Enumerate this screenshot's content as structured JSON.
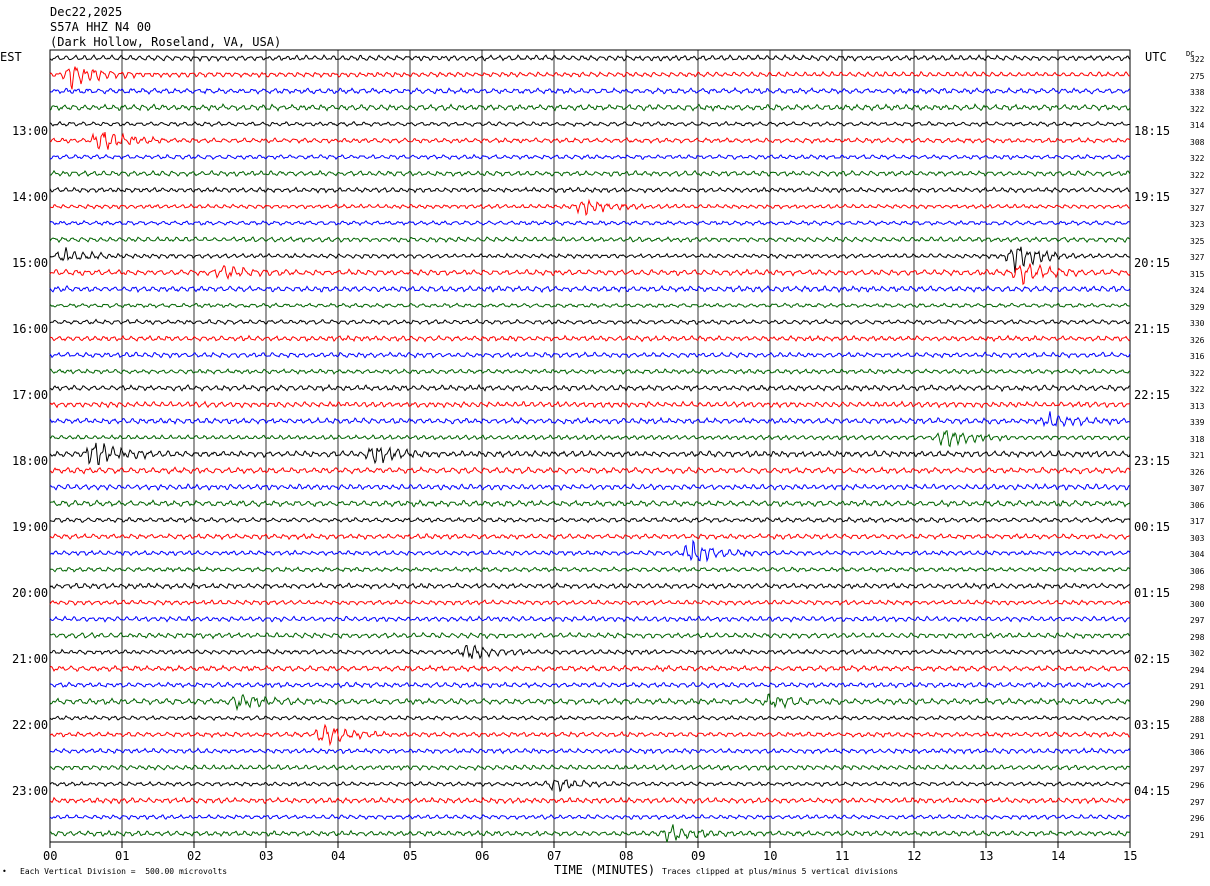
{
  "header": {
    "date": "Dec22,2025",
    "station": "S57A HHZ N4 00",
    "location": "(Dark Hollow, Roseland, VA, USA)"
  },
  "left_tz": "EST",
  "right_tz": "UTC",
  "dc_header": "DC",
  "footer": {
    "scale": "Each Vertical Division =  500.00 microvolts",
    "xlabel": "TIME (MINUTES)",
    "clip": "Traces clipped at plus/minus 5 vertical divisions"
  },
  "colors": {
    "trace": [
      "#000000",
      "#ff0000",
      "#0000ff",
      "#006400"
    ],
    "grid": "#000000"
  },
  "chart_data": {
    "type": "line",
    "title": "S57A HHZ N4 00",
    "xlabel": "TIME (MINUTES)",
    "xlim": [
      0,
      15
    ],
    "x_ticks": [
      "00",
      "01",
      "02",
      "03",
      "04",
      "05",
      "06",
      "07",
      "08",
      "09",
      "10",
      "11",
      "12",
      "13",
      "14",
      "15"
    ],
    "left_hour_labels": [
      "13:00",
      "14:00",
      "15:00",
      "16:00",
      "17:00",
      "18:00",
      "19:00",
      "20:00",
      "21:00",
      "22:00",
      "23:00"
    ],
    "right_hour_labels": [
      "18:15",
      "19:15",
      "20:15",
      "21:15",
      "22:15",
      "23:15",
      "00:15",
      "01:15",
      "02:15",
      "03:15",
      "04:15"
    ],
    "dc_values": [
      "322",
      "275",
      "338",
      "322",
      "314",
      "308",
      "322",
      "322",
      "327",
      "327",
      "323",
      "325",
      "327",
      "315",
      "324",
      "329",
      "330",
      "326",
      "316",
      "322",
      "322",
      "313",
      "339",
      "318",
      "321",
      "326",
      "307",
      "306",
      "317",
      "303",
      "304",
      "306",
      "298",
      "300",
      "297",
      "298",
      "302",
      "294",
      "291",
      "290",
      "288",
      "291",
      "306",
      "297",
      "296",
      "297",
      "296",
      "291"
    ],
    "traces_per_hour": 4,
    "trace_minutes": 15,
    "events": [
      {
        "trace": 1,
        "minute": 0.3,
        "amp": 3
      },
      {
        "trace": 5,
        "minute": 0.7,
        "amp": 3
      },
      {
        "trace": 9,
        "minute": 7.4,
        "amp": 1.8
      },
      {
        "trace": 12,
        "minute": 13.4,
        "amp": 3.5
      },
      {
        "trace": 12,
        "minute": 0.2,
        "amp": 1.5
      },
      {
        "trace": 13,
        "minute": 13.5,
        "amp": 3
      },
      {
        "trace": 13,
        "minute": 2.4,
        "amp": 1.6
      },
      {
        "trace": 22,
        "minute": 13.9,
        "amp": 1.6
      },
      {
        "trace": 23,
        "minute": 12.4,
        "amp": 2.5
      },
      {
        "trace": 24,
        "minute": 0.6,
        "amp": 3
      },
      {
        "trace": 24,
        "minute": 4.5,
        "amp": 2.5
      },
      {
        "trace": 30,
        "minute": 8.9,
        "amp": 3
      },
      {
        "trace": 36,
        "minute": 5.8,
        "amp": 1.8
      },
      {
        "trace": 39,
        "minute": 2.6,
        "amp": 2
      },
      {
        "trace": 39,
        "minute": 10.0,
        "amp": 1.5
      },
      {
        "trace": 41,
        "minute": 3.8,
        "amp": 3
      },
      {
        "trace": 44,
        "minute": 7.0,
        "amp": 1.6
      },
      {
        "trace": 47,
        "minute": 8.6,
        "amp": 2
      }
    ]
  }
}
